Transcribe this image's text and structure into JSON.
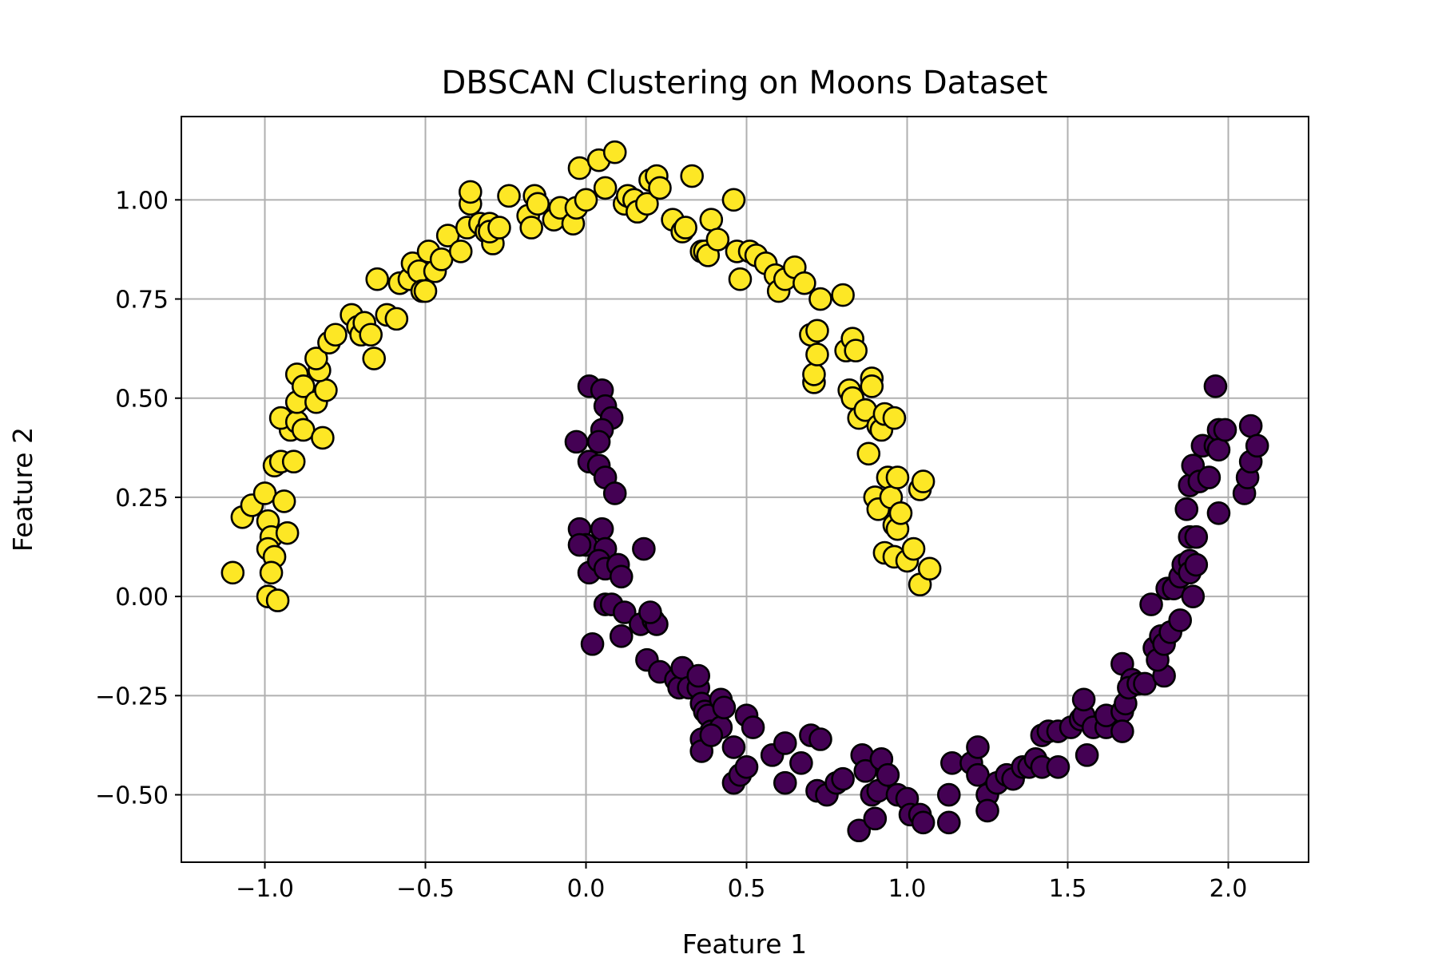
{
  "chart_data": {
    "type": "scatter",
    "title": "DBSCAN Clustering on Moons Dataset",
    "xlabel": "Feature 1",
    "ylabel": "Feature 2",
    "xlim": [
      -1.26,
      2.25
    ],
    "ylim": [
      -0.67,
      1.21
    ],
    "xticks": [
      -1.0,
      -0.5,
      0.0,
      0.5,
      1.0,
      1.5,
      2.0
    ],
    "xtick_labels": [
      "−1.0",
      "−0.5",
      "0.0",
      "0.5",
      "1.0",
      "1.5",
      "2.0"
    ],
    "yticks": [
      -0.5,
      -0.25,
      0.0,
      0.25,
      0.5,
      0.75,
      1.0
    ],
    "ytick_labels": [
      "−0.50",
      "−0.25",
      "0.00",
      "0.25",
      "0.50",
      "0.75",
      "1.00"
    ],
    "grid": true,
    "legend": "none",
    "marker_edge_color": "#000000",
    "series": [
      {
        "color": "#fde725",
        "points": [
          [
            -1.1,
            0.06
          ],
          [
            -1.07,
            0.2
          ],
          [
            -1.04,
            0.23
          ],
          [
            -1.0,
            0.26
          ],
          [
            -0.99,
            0.19
          ],
          [
            -0.98,
            0.15
          ],
          [
            -0.99,
            0.12
          ],
          [
            -0.97,
            0.1
          ],
          [
            -0.98,
            0.06
          ],
          [
            -0.99,
            0.0
          ],
          [
            -0.96,
            -0.01
          ],
          [
            -0.97,
            0.33
          ],
          [
            -0.95,
            0.34
          ],
          [
            -0.94,
            0.24
          ],
          [
            -0.93,
            0.16
          ],
          [
            -0.91,
            0.34
          ],
          [
            -0.92,
            0.42
          ],
          [
            -0.95,
            0.45
          ],
          [
            -0.9,
            0.44
          ],
          [
            -0.9,
            0.49
          ],
          [
            -0.88,
            0.42
          ],
          [
            -0.9,
            0.56
          ],
          [
            -0.88,
            0.53
          ],
          [
            -0.84,
            0.49
          ],
          [
            -0.81,
            0.52
          ],
          [
            -0.83,
            0.57
          ],
          [
            -0.84,
            0.6
          ],
          [
            -0.82,
            0.4
          ],
          [
            -0.8,
            0.64
          ],
          [
            -0.78,
            0.66
          ],
          [
            -0.73,
            0.71
          ],
          [
            -0.71,
            0.68
          ],
          [
            -0.7,
            0.66
          ],
          [
            -0.69,
            0.69
          ],
          [
            -0.67,
            0.66
          ],
          [
            -0.66,
            0.6
          ],
          [
            -0.65,
            0.8
          ],
          [
            -0.62,
            0.71
          ],
          [
            -0.59,
            0.7
          ],
          [
            -0.58,
            0.79
          ],
          [
            -0.55,
            0.8
          ],
          [
            -0.54,
            0.84
          ],
          [
            -0.52,
            0.82
          ],
          [
            -0.51,
            0.77
          ],
          [
            -0.5,
            0.77
          ],
          [
            -0.47,
            0.82
          ],
          [
            -0.49,
            0.87
          ],
          [
            -0.45,
            0.85
          ],
          [
            -0.43,
            0.91
          ],
          [
            -0.39,
            0.87
          ],
          [
            -0.37,
            0.93
          ],
          [
            -0.36,
            0.99
          ],
          [
            -0.36,
            1.02
          ],
          [
            -0.33,
            0.94
          ],
          [
            -0.31,
            0.92
          ],
          [
            -0.3,
            0.94
          ],
          [
            -0.29,
            0.89
          ],
          [
            -0.3,
            0.92
          ],
          [
            -0.27,
            0.93
          ],
          [
            -0.24,
            1.01
          ],
          [
            -0.18,
            0.96
          ],
          [
            -0.17,
            0.93
          ],
          [
            -0.16,
            1.01
          ],
          [
            -0.15,
            0.99
          ],
          [
            -0.1,
            0.95
          ],
          [
            -0.08,
            0.98
          ],
          [
            -0.04,
            0.94
          ],
          [
            -0.03,
            0.98
          ],
          [
            -0.02,
            1.08
          ],
          [
            0.0,
            1.0
          ],
          [
            0.04,
            1.1
          ],
          [
            0.06,
            1.03
          ],
          [
            0.09,
            1.12
          ],
          [
            0.12,
            0.99
          ],
          [
            0.13,
            1.01
          ],
          [
            0.15,
            1.0
          ],
          [
            0.16,
            0.97
          ],
          [
            0.19,
            0.99
          ],
          [
            0.2,
            1.05
          ],
          [
            0.22,
            1.06
          ],
          [
            0.23,
            1.03
          ],
          [
            0.27,
            0.95
          ],
          [
            0.3,
            0.92
          ],
          [
            0.31,
            0.93
          ],
          [
            0.33,
            1.06
          ],
          [
            0.36,
            0.87
          ],
          [
            0.37,
            0.87
          ],
          [
            0.38,
            0.86
          ],
          [
            0.39,
            0.95
          ],
          [
            0.41,
            0.9
          ],
          [
            0.46,
            1.0
          ],
          [
            0.47,
            0.87
          ],
          [
            0.48,
            0.8
          ],
          [
            0.51,
            0.87
          ],
          [
            0.53,
            0.86
          ],
          [
            0.56,
            0.84
          ],
          [
            0.59,
            0.81
          ],
          [
            0.6,
            0.77
          ],
          [
            0.62,
            0.8
          ],
          [
            0.65,
            0.83
          ],
          [
            0.68,
            0.79
          ],
          [
            0.7,
            0.66
          ],
          [
            0.71,
            0.54
          ],
          [
            0.71,
            0.56
          ],
          [
            0.72,
            0.61
          ],
          [
            0.72,
            0.67
          ],
          [
            0.73,
            0.75
          ],
          [
            0.8,
            0.76
          ],
          [
            0.81,
            0.62
          ],
          [
            0.82,
            0.52
          ],
          [
            0.83,
            0.5
          ],
          [
            0.83,
            0.65
          ],
          [
            0.84,
            0.62
          ],
          [
            0.85,
            0.45
          ],
          [
            0.87,
            0.47
          ],
          [
            0.88,
            0.36
          ],
          [
            0.89,
            0.55
          ],
          [
            0.89,
            0.53
          ],
          [
            0.91,
            0.43
          ],
          [
            0.92,
            0.42
          ],
          [
            0.93,
            0.46
          ],
          [
            0.9,
            0.25
          ],
          [
            0.91,
            0.22
          ],
          [
            0.94,
            0.3
          ],
          [
            0.95,
            0.25
          ],
          [
            0.96,
            0.45
          ],
          [
            0.96,
            0.18
          ],
          [
            0.97,
            0.17
          ],
          [
            0.98,
            0.21
          ],
          [
            0.93,
            0.11
          ],
          [
            0.96,
            0.1
          ],
          [
            0.97,
            0.3
          ],
          [
            1.0,
            0.09
          ],
          [
            1.02,
            0.12
          ],
          [
            1.04,
            0.27
          ],
          [
            1.05,
            0.29
          ],
          [
            1.04,
            0.03
          ],
          [
            1.07,
            0.07
          ]
        ]
      },
      {
        "color": "#440154",
        "points": [
          [
            -0.03,
            0.39
          ],
          [
            0.01,
            0.53
          ],
          [
            0.05,
            0.52
          ],
          [
            0.06,
            0.48
          ],
          [
            0.08,
            0.45
          ],
          [
            0.05,
            0.42
          ],
          [
            0.04,
            0.39
          ],
          [
            0.01,
            0.34
          ],
          [
            0.04,
            0.33
          ],
          [
            0.06,
            0.3
          ],
          [
            0.09,
            0.26
          ],
          [
            -0.02,
            0.17
          ],
          [
            0.0,
            0.13
          ],
          [
            -0.02,
            0.13
          ],
          [
            0.05,
            0.17
          ],
          [
            0.06,
            0.12
          ],
          [
            0.01,
            0.06
          ],
          [
            0.04,
            0.09
          ],
          [
            0.06,
            0.07
          ],
          [
            0.1,
            0.08
          ],
          [
            0.11,
            0.05
          ],
          [
            0.18,
            0.12
          ],
          [
            0.02,
            -0.12
          ],
          [
            0.06,
            -0.02
          ],
          [
            0.08,
            -0.02
          ],
          [
            0.12,
            -0.04
          ],
          [
            0.11,
            -0.1
          ],
          [
            0.17,
            -0.07
          ],
          [
            0.21,
            -0.06
          ],
          [
            0.22,
            -0.07
          ],
          [
            0.2,
            -0.04
          ],
          [
            0.19,
            -0.16
          ],
          [
            0.23,
            -0.19
          ],
          [
            0.28,
            -0.21
          ],
          [
            0.29,
            -0.23
          ],
          [
            0.3,
            -0.18
          ],
          [
            0.32,
            -0.23
          ],
          [
            0.35,
            -0.23
          ],
          [
            0.35,
            -0.2
          ],
          [
            0.36,
            -0.27
          ],
          [
            0.37,
            -0.29
          ],
          [
            0.38,
            -0.3
          ],
          [
            0.39,
            -0.34
          ],
          [
            0.42,
            -0.26
          ],
          [
            0.42,
            -0.33
          ],
          [
            0.36,
            -0.36
          ],
          [
            0.36,
            -0.39
          ],
          [
            0.39,
            -0.35
          ],
          [
            0.43,
            -0.28
          ],
          [
            0.46,
            -0.38
          ],
          [
            0.46,
            -0.47
          ],
          [
            0.48,
            -0.45
          ],
          [
            0.5,
            -0.43
          ],
          [
            0.5,
            -0.3
          ],
          [
            0.52,
            -0.33
          ],
          [
            0.58,
            -0.4
          ],
          [
            0.62,
            -0.37
          ],
          [
            0.62,
            -0.47
          ],
          [
            0.67,
            -0.42
          ],
          [
            0.7,
            -0.35
          ],
          [
            0.72,
            -0.49
          ],
          [
            0.73,
            -0.36
          ],
          [
            0.75,
            -0.5
          ],
          [
            0.78,
            -0.47
          ],
          [
            0.8,
            -0.46
          ],
          [
            0.85,
            -0.59
          ],
          [
            0.86,
            -0.4
          ],
          [
            0.87,
            -0.44
          ],
          [
            0.89,
            -0.5
          ],
          [
            0.9,
            -0.56
          ],
          [
            0.91,
            -0.49
          ],
          [
            0.92,
            -0.41
          ],
          [
            0.94,
            -0.45
          ],
          [
            0.97,
            -0.5
          ],
          [
            1.0,
            -0.51
          ],
          [
            1.01,
            -0.55
          ],
          [
            1.04,
            -0.55
          ],
          [
            1.05,
            -0.57
          ],
          [
            1.13,
            -0.57
          ],
          [
            1.13,
            -0.5
          ],
          [
            1.14,
            -0.42
          ],
          [
            1.2,
            -0.42
          ],
          [
            1.22,
            -0.38
          ],
          [
            1.22,
            -0.45
          ],
          [
            1.25,
            -0.5
          ],
          [
            1.25,
            -0.54
          ],
          [
            1.28,
            -0.47
          ],
          [
            1.31,
            -0.45
          ],
          [
            1.33,
            -0.46
          ],
          [
            1.36,
            -0.43
          ],
          [
            1.38,
            -0.43
          ],
          [
            1.4,
            -0.41
          ],
          [
            1.42,
            -0.43
          ],
          [
            1.42,
            -0.35
          ],
          [
            1.44,
            -0.34
          ],
          [
            1.47,
            -0.34
          ],
          [
            1.47,
            -0.43
          ],
          [
            1.51,
            -0.33
          ],
          [
            1.54,
            -0.31
          ],
          [
            1.55,
            -0.3
          ],
          [
            1.56,
            -0.4
          ],
          [
            1.55,
            -0.26
          ],
          [
            1.58,
            -0.33
          ],
          [
            1.62,
            -0.33
          ],
          [
            1.62,
            -0.3
          ],
          [
            1.67,
            -0.29
          ],
          [
            1.67,
            -0.34
          ],
          [
            1.68,
            -0.27
          ],
          [
            1.67,
            -0.17
          ],
          [
            1.7,
            -0.21
          ],
          [
            1.69,
            -0.23
          ],
          [
            1.72,
            -0.22
          ],
          [
            1.74,
            -0.22
          ],
          [
            1.76,
            -0.02
          ],
          [
            1.77,
            -0.13
          ],
          [
            1.79,
            -0.1
          ],
          [
            1.8,
            -0.2
          ],
          [
            1.78,
            -0.16
          ],
          [
            1.8,
            -0.12
          ],
          [
            1.81,
            0.02
          ],
          [
            1.82,
            -0.09
          ],
          [
            1.83,
            0.02
          ],
          [
            1.85,
            -0.06
          ],
          [
            1.85,
            0.05
          ],
          [
            1.86,
            0.08
          ],
          [
            1.88,
            0.09
          ],
          [
            1.88,
            0.06
          ],
          [
            1.89,
            0.0
          ],
          [
            1.9,
            0.08
          ],
          [
            1.88,
            0.15
          ],
          [
            1.9,
            0.15
          ],
          [
            1.87,
            0.22
          ],
          [
            1.88,
            0.28
          ],
          [
            1.89,
            0.33
          ],
          [
            1.91,
            0.29
          ],
          [
            1.92,
            0.38
          ],
          [
            1.94,
            0.3
          ],
          [
            1.96,
            0.53
          ],
          [
            1.96,
            0.38
          ],
          [
            1.97,
            0.42
          ],
          [
            1.97,
            0.37
          ],
          [
            1.99,
            0.42
          ],
          [
            1.97,
            0.21
          ],
          [
            2.05,
            0.26
          ],
          [
            2.06,
            0.3
          ],
          [
            2.07,
            0.43
          ],
          [
            2.07,
            0.34
          ],
          [
            2.09,
            0.38
          ]
        ]
      }
    ]
  }
}
